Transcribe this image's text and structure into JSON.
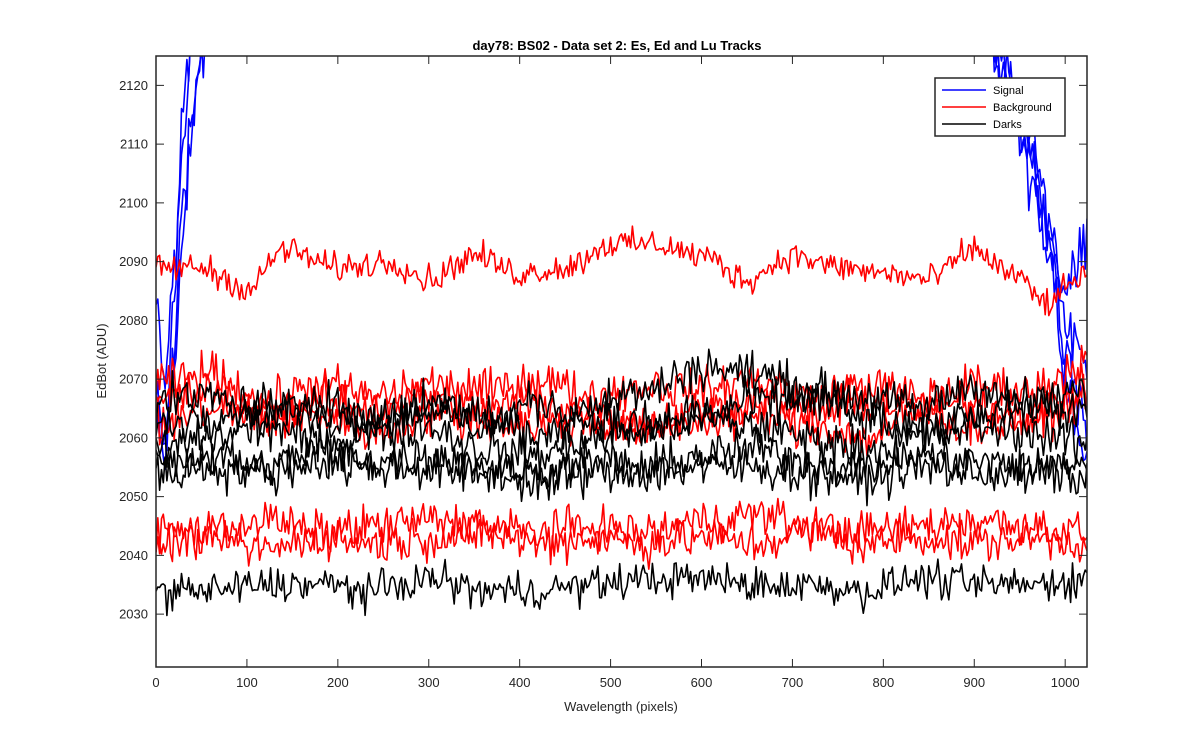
{
  "figure": {
    "title": "day78: BS02 - Data set 2: Es, Ed and Lu Tracks"
  },
  "chart_data": {
    "type": "line",
    "title": "day78: BS02 - Data set 2: Es, Ed and Lu Tracks",
    "xlabel": "Wavelength (pixels)",
    "ylabel": "EdBot (ADU)",
    "xlim": [
      0,
      1024
    ],
    "ylim": [
      2021,
      2125
    ],
    "xticks": [
      0,
      100,
      200,
      300,
      400,
      500,
      600,
      700,
      800,
      900,
      1000
    ],
    "yticks": [
      2030,
      2040,
      2050,
      2060,
      2070,
      2080,
      2090,
      2100,
      2110,
      2120
    ],
    "grid": false,
    "legend": {
      "placement": "top-right",
      "entries": [
        {
          "label": "Signal",
          "color": "#0000ff"
        },
        {
          "label": "Background",
          "color": "#ff0000"
        },
        {
          "label": "Darks",
          "color": "#000000"
        }
      ]
    },
    "series": [
      {
        "group": "Signal",
        "color": "#0000ff",
        "noise": 2.5,
        "x": [
          0,
          10,
          20,
          30,
          40,
          60,
          900,
          940,
          960,
          980,
          1000,
          1024
        ],
        "values": [
          2060,
          2056,
          2085,
          2110,
          2130,
          2140,
          2140,
          2120,
          2112,
          2100,
          2075,
          2063
        ]
      },
      {
        "group": "Signal",
        "color": "#0000ff",
        "noise": 2.5,
        "x": [
          0,
          10,
          20,
          30,
          40,
          50,
          900,
          940,
          960,
          980,
          1000,
          1024
        ],
        "values": [
          2085,
          2070,
          2090,
          2115,
          2130,
          2140,
          2140,
          2118,
          2108,
          2095,
          2070,
          2058
        ]
      },
      {
        "group": "Signal",
        "color": "#0000ff",
        "noise": 2.5,
        "x": [
          0,
          10,
          20,
          30,
          50,
          70,
          900,
          940,
          960,
          985,
          1000,
          1024
        ],
        "values": [
          2070,
          2058,
          2075,
          2100,
          2125,
          2140,
          2140,
          2116,
          2105,
          2090,
          2080,
          2072
        ]
      },
      {
        "group": "Signal",
        "color": "#0000ff",
        "noise": 2.5,
        "x": [
          0,
          10,
          20,
          30,
          40,
          60,
          900,
          940,
          960,
          985,
          1000,
          1024
        ],
        "values": [
          2066,
          2060,
          2072,
          2095,
          2118,
          2135,
          2140,
          2120,
          2110,
          2095,
          2085,
          2092
        ]
      },
      {
        "group": "Background",
        "color": "#ff0000",
        "noise": 1.2,
        "x": [
          0,
          50,
          80,
          100,
          140,
          200,
          260,
          300,
          350,
          400,
          450,
          500,
          550,
          600,
          650,
          700,
          750,
          800,
          850,
          900,
          940,
          980,
          1024
        ],
        "values": [
          2089,
          2089,
          2087,
          2085,
          2092,
          2089,
          2090,
          2087,
          2091,
          2088,
          2089,
          2093,
          2093,
          2091,
          2087,
          2091,
          2089,
          2088,
          2087,
          2092,
          2088,
          2083,
          2088
        ]
      },
      {
        "group": "Background",
        "color": "#ff0000",
        "noise": 1.8,
        "x": [
          0,
          60,
          120,
          180,
          240,
          300,
          360,
          420,
          480,
          540,
          600,
          660,
          720,
          780,
          840,
          900,
          960,
          1024
        ],
        "values": [
          2069,
          2071,
          2066,
          2069,
          2067,
          2069,
          2068,
          2070,
          2067,
          2069,
          2068,
          2070,
          2067,
          2069,
          2067,
          2069,
          2068,
          2073
        ]
      },
      {
        "group": "Background",
        "color": "#ff0000",
        "noise": 1.8,
        "x": [
          0,
          60,
          120,
          180,
          240,
          300,
          360,
          420,
          480,
          540,
          600,
          660,
          720,
          780,
          840,
          900,
          960,
          1024
        ],
        "values": [
          2066,
          2068,
          2064,
          2066,
          2065,
          2067,
          2065,
          2066,
          2064,
          2062,
          2065,
          2066,
          2064,
          2066,
          2065,
          2066,
          2064,
          2068
        ]
      },
      {
        "group": "Background",
        "color": "#ff0000",
        "noise": 1.8,
        "x": [
          0,
          60,
          120,
          180,
          240,
          300,
          360,
          420,
          480,
          540,
          600,
          660,
          720,
          780,
          840,
          900,
          960,
          1024
        ],
        "values": [
          2062,
          2065,
          2063,
          2064,
          2061,
          2064,
          2063,
          2062,
          2063,
          2061,
          2063,
          2064,
          2062,
          2060,
          2064,
          2062,
          2063,
          2066
        ]
      },
      {
        "group": "Background",
        "color": "#ff0000",
        "noise": 1.7,
        "x": [
          0,
          60,
          120,
          180,
          240,
          300,
          360,
          420,
          480,
          540,
          600,
          660,
          720,
          780,
          840,
          900,
          960,
          1024
        ],
        "values": [
          2044,
          2044,
          2046,
          2044,
          2045,
          2046,
          2045,
          2044,
          2045,
          2044,
          2046,
          2047,
          2045,
          2044,
          2045,
          2046,
          2045,
          2044
        ]
      },
      {
        "group": "Background",
        "color": "#ff0000",
        "noise": 1.7,
        "x": [
          0,
          60,
          120,
          180,
          240,
          300,
          360,
          420,
          480,
          540,
          600,
          660,
          720,
          780,
          840,
          900,
          960,
          1024
        ],
        "values": [
          2042,
          2043,
          2041,
          2043,
          2042,
          2043,
          2044,
          2042,
          2043,
          2042,
          2043,
          2042,
          2044,
          2042,
          2043,
          2042,
          2043,
          2042
        ]
      },
      {
        "group": "Darks",
        "color": "#000000",
        "noise": 1.8,
        "x": [
          0,
          60,
          120,
          180,
          240,
          300,
          360,
          420,
          480,
          540,
          600,
          660,
          720,
          780,
          840,
          900,
          960,
          1024
        ],
        "values": [
          2066,
          2067,
          2063,
          2067,
          2062,
          2066,
          2064,
          2060,
          2066,
          2068,
          2072,
          2071,
          2068,
          2067,
          2065,
          2069,
          2065,
          2068
        ]
      },
      {
        "group": "Darks",
        "color": "#000000",
        "noise": 1.8,
        "x": [
          0,
          60,
          120,
          180,
          240,
          300,
          360,
          420,
          480,
          540,
          600,
          660,
          720,
          780,
          840,
          900,
          960,
          1024
        ],
        "values": [
          2062,
          2064,
          2066,
          2063,
          2064,
          2065,
          2062,
          2066,
          2063,
          2062,
          2064,
          2066,
          2067,
          2063,
          2061,
          2064,
          2066,
          2064
        ]
      },
      {
        "group": "Darks",
        "color": "#000000",
        "noise": 1.8,
        "x": [
          0,
          60,
          120,
          180,
          240,
          300,
          360,
          420,
          480,
          540,
          600,
          660,
          720,
          780,
          840,
          900,
          960,
          1024
        ],
        "values": [
          2058,
          2060,
          2062,
          2059,
          2061,
          2062,
          2058,
          2057,
          2060,
          2061,
          2063,
          2062,
          2060,
          2058,
          2060,
          2062,
          2061,
          2059
        ]
      },
      {
        "group": "Darks",
        "color": "#000000",
        "noise": 1.8,
        "x": [
          0,
          60,
          120,
          180,
          240,
          300,
          360,
          420,
          480,
          540,
          600,
          660,
          720,
          780,
          840,
          900,
          960,
          1024
        ],
        "values": [
          2056,
          2057,
          2055,
          2058,
          2056,
          2057,
          2055,
          2054,
          2056,
          2055,
          2057,
          2058,
          2056,
          2055,
          2057,
          2056,
          2055,
          2056
        ]
      },
      {
        "group": "Darks",
        "color": "#000000",
        "noise": 1.8,
        "x": [
          0,
          60,
          120,
          180,
          240,
          300,
          360,
          420,
          480,
          540,
          600,
          660,
          720,
          780,
          840,
          900,
          960,
          1024
        ],
        "values": [
          2054,
          2055,
          2054,
          2056,
          2055,
          2055,
          2054,
          2053,
          2054,
          2054,
          2055,
          2055,
          2054,
          2053,
          2055,
          2054,
          2054,
          2053
        ]
      },
      {
        "group": "Darks",
        "color": "#000000",
        "noise": 1.5,
        "x": [
          0,
          60,
          120,
          180,
          240,
          300,
          360,
          420,
          480,
          540,
          600,
          660,
          720,
          780,
          840,
          900,
          960,
          1024
        ],
        "values": [
          2034,
          2034,
          2035,
          2035,
          2034,
          2036,
          2034,
          2034,
          2035,
          2036,
          2036,
          2035,
          2035,
          2034,
          2036,
          2035,
          2035,
          2036
        ]
      }
    ]
  }
}
